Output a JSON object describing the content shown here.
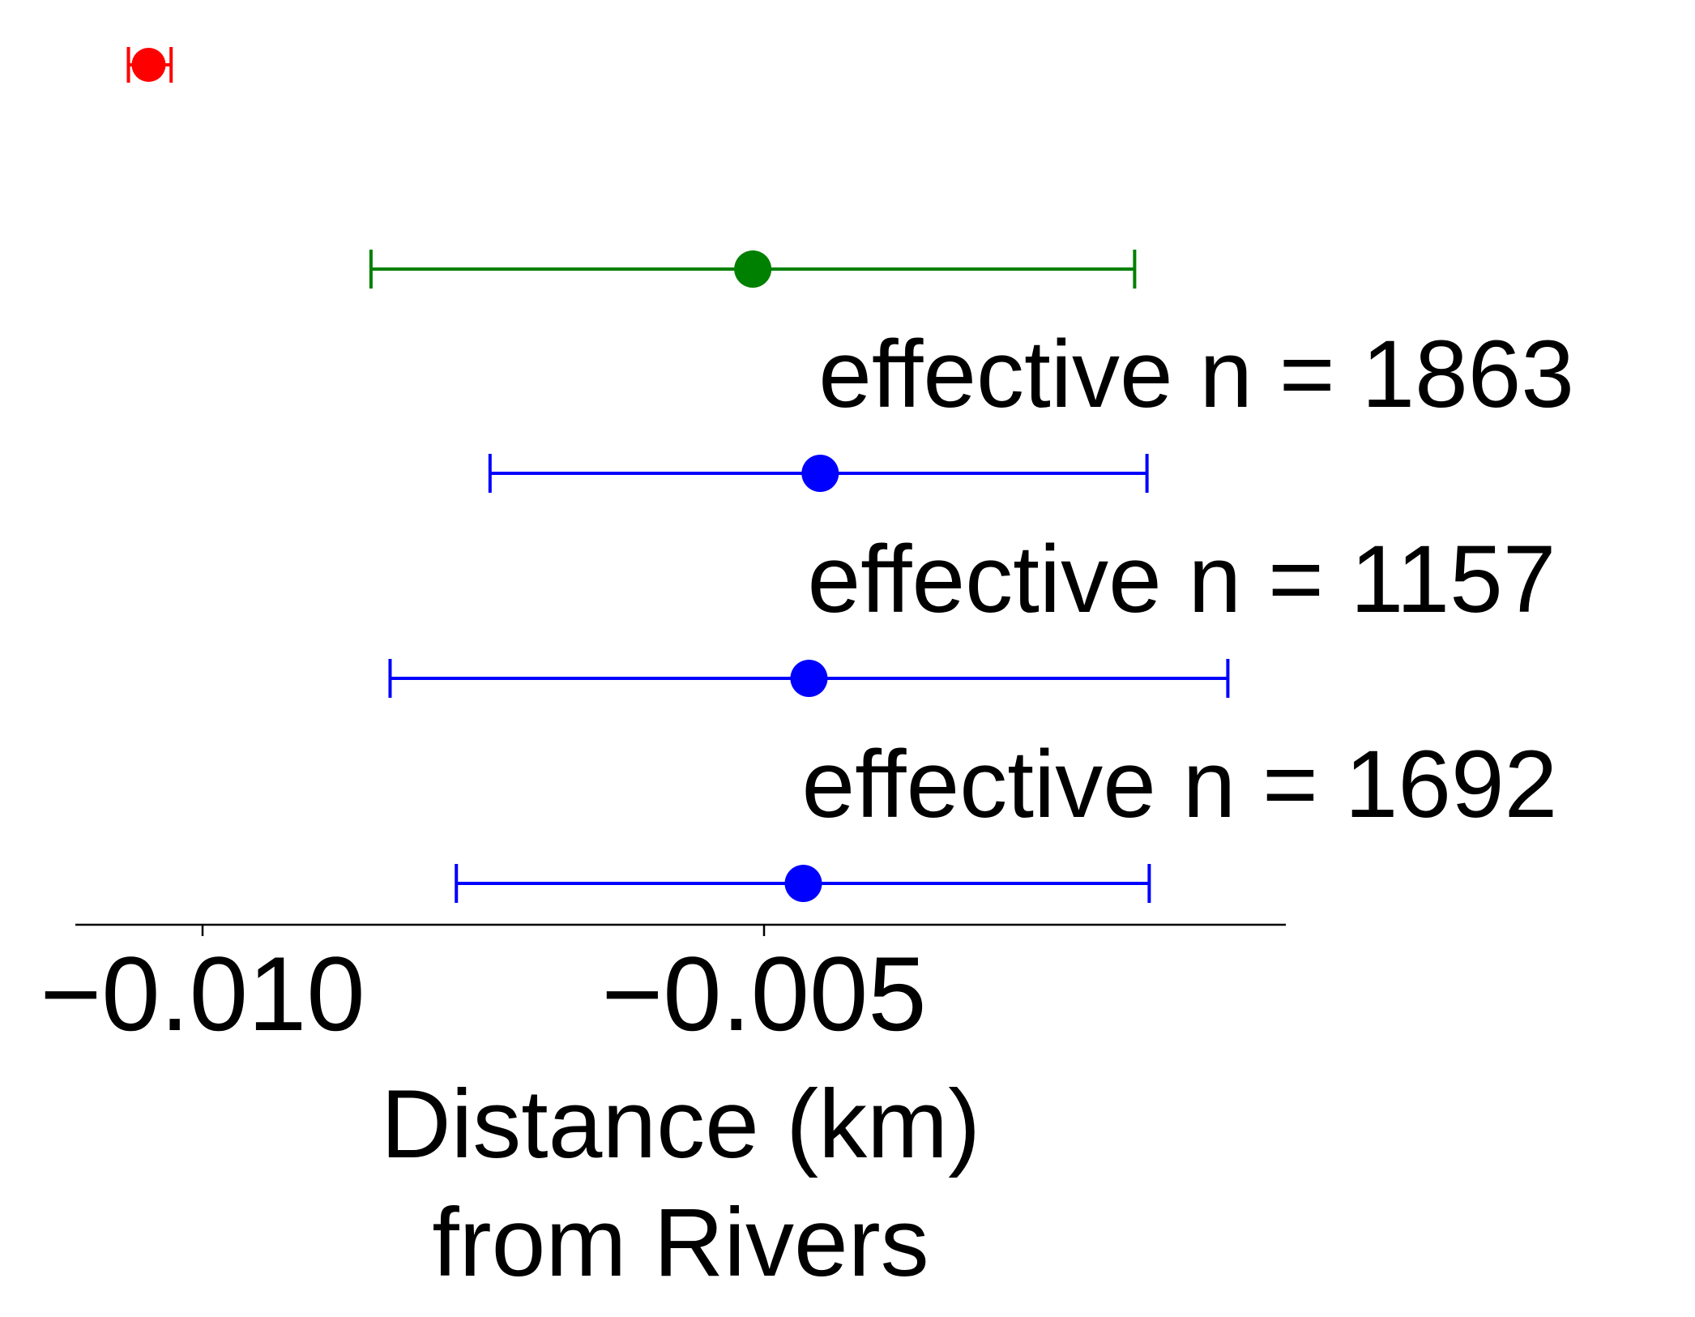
{
  "chart_data": {
    "type": "scatter",
    "subtype": "point-estimates-with-error-bars",
    "xlabel_lines": [
      "Distance (km)",
      "from Rivers"
    ],
    "x_ticks": [
      -0.01,
      -0.005
    ],
    "x_tick_labels": [
      "−0.010",
      "−0.005"
    ],
    "grid": false,
    "legend": "none",
    "points": [
      {
        "estimate": -0.01048,
        "ci_low": -0.01066,
        "ci_high": -0.01028,
        "color": "#ff0000",
        "annotation": ""
      },
      {
        "estimate": -0.0051,
        "ci_low": -0.0085,
        "ci_high": -0.0017,
        "color": "#008000",
        "annotation": ""
      },
      {
        "estimate": -0.0045,
        "ci_low": -0.00744,
        "ci_high": -0.00159,
        "color": "#0000ff",
        "annotation": "effective n = 1863"
      },
      {
        "estimate": -0.0046,
        "ci_low": -0.00833,
        "ci_high": -0.00087,
        "color": "#0000ff",
        "annotation": "effective n = 1157"
      },
      {
        "estimate": -0.00465,
        "ci_low": -0.00774,
        "ci_high": -0.00157,
        "color": "#0000ff",
        "annotation": "effective n = 1692"
      }
    ]
  }
}
